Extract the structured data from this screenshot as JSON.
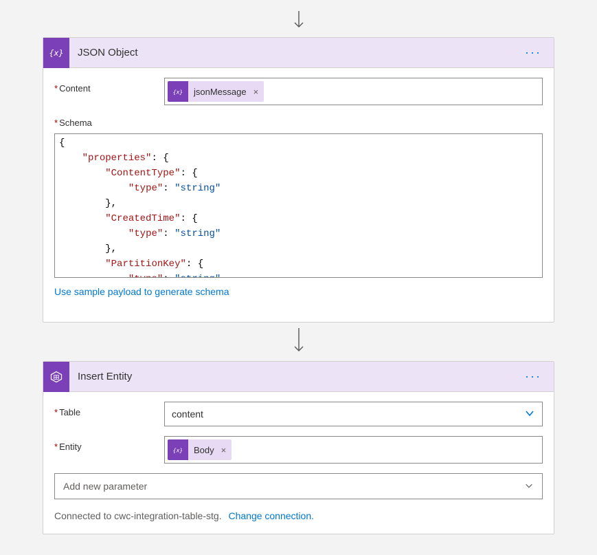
{
  "colors": {
    "page_bg": "#f3f3f3",
    "card_bg": "#ffffff",
    "header_bg": "#ece4f6",
    "border": "#d2d0ce",
    "input_border": "#8a8886",
    "accent_purple": "#7b3fb8",
    "token_bg": "#e8d9f5",
    "link": "#0078d4",
    "required": "#a80000",
    "text": "#323130",
    "subtext": "#605e5c"
  },
  "card1": {
    "title": "JSON Object",
    "fields": {
      "content_label": "Content",
      "content_token": "jsonMessage",
      "schema_label": "Schema",
      "schema_lines": [
        "{",
        "    \"properties\": {",
        "        \"ContentType\": {",
        "            \"type\": \"string\"",
        "        },",
        "        \"CreatedTime\": {",
        "            \"type\": \"string\"",
        "        },",
        "        \"PartitionKey\": {",
        "            \"type\": \"string\""
      ],
      "sample_link": "Use sample payload to generate schema"
    }
  },
  "card2": {
    "title": "Insert Entity",
    "fields": {
      "table_label": "Table",
      "table_value": "content",
      "entity_label": "Entity",
      "entity_token": "Body",
      "add_param": "Add new parameter"
    },
    "connection_text": "Connected to cwc-integration-table-stg.",
    "change_conn": "Change connection."
  }
}
